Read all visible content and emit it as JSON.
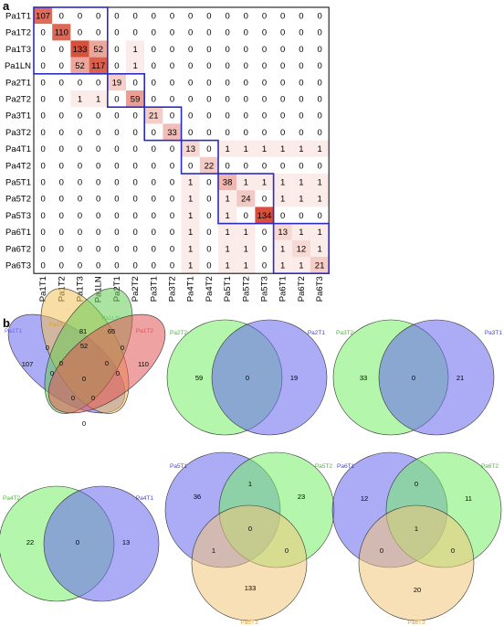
{
  "panels": {
    "a_label": "a",
    "b_label": "b"
  },
  "chart_data": [
    {
      "type": "heatmap",
      "labels": [
        "Pa1T1",
        "Pa1T2",
        "Pa1T3",
        "Pa1LN",
        "Pa2T1",
        "Pa2T2",
        "Pa3T1",
        "Pa3T2",
        "Pa4T1",
        "Pa4T2",
        "Pa5T1",
        "Pa5T2",
        "Pa5T3",
        "Pa6T1",
        "Pa6T2",
        "Pa6T3"
      ],
      "values": [
        [
          107,
          0,
          0,
          0,
          0,
          0,
          0,
          0,
          0,
          0,
          0,
          0,
          0,
          0,
          0,
          0
        ],
        [
          0,
          110,
          0,
          0,
          0,
          0,
          0,
          0,
          0,
          0,
          0,
          0,
          0,
          0,
          0,
          0
        ],
        [
          0,
          0,
          133,
          52,
          0,
          1,
          0,
          0,
          0,
          0,
          0,
          0,
          0,
          0,
          0,
          0
        ],
        [
          0,
          0,
          52,
          117,
          0,
          1,
          0,
          0,
          0,
          0,
          0,
          0,
          0,
          0,
          0,
          0
        ],
        [
          0,
          0,
          0,
          0,
          19,
          0,
          0,
          0,
          0,
          0,
          0,
          0,
          0,
          0,
          0,
          0
        ],
        [
          0,
          0,
          1,
          1,
          0,
          59,
          0,
          0,
          0,
          0,
          0,
          0,
          0,
          0,
          0,
          0
        ],
        [
          0,
          0,
          0,
          0,
          0,
          0,
          21,
          0,
          0,
          0,
          0,
          0,
          0,
          0,
          0,
          0
        ],
        [
          0,
          0,
          0,
          0,
          0,
          0,
          0,
          33,
          0,
          0,
          0,
          0,
          0,
          0,
          0,
          0
        ],
        [
          0,
          0,
          0,
          0,
          0,
          0,
          0,
          0,
          13,
          0,
          1,
          1,
          1,
          1,
          1,
          1
        ],
        [
          0,
          0,
          0,
          0,
          0,
          0,
          0,
          0,
          0,
          22,
          0,
          0,
          0,
          0,
          0,
          0
        ],
        [
          0,
          0,
          0,
          0,
          0,
          0,
          0,
          0,
          1,
          0,
          38,
          1,
          1,
          1,
          1,
          1
        ],
        [
          0,
          0,
          0,
          0,
          0,
          0,
          0,
          0,
          1,
          0,
          1,
          24,
          0,
          1,
          1,
          1
        ],
        [
          0,
          0,
          0,
          0,
          0,
          0,
          0,
          0,
          1,
          0,
          1,
          0,
          134,
          0,
          0,
          0
        ],
        [
          0,
          0,
          0,
          0,
          0,
          0,
          0,
          0,
          1,
          0,
          1,
          1,
          0,
          13,
          1,
          1
        ],
        [
          0,
          0,
          0,
          0,
          0,
          0,
          0,
          0,
          1,
          0,
          1,
          1,
          0,
          1,
          12,
          1
        ],
        [
          0,
          0,
          0,
          0,
          0,
          0,
          0,
          0,
          1,
          0,
          1,
          1,
          0,
          1,
          1,
          21
        ]
      ],
      "groups": [
        [
          0,
          3
        ],
        [
          4,
          5
        ],
        [
          6,
          7
        ],
        [
          8,
          9
        ],
        [
          10,
          12
        ],
        [
          13,
          15
        ]
      ],
      "colors": {
        "low": "#ffffff",
        "high": "#d94f3b",
        "group_box": "#2b2bbf"
      }
    },
    {
      "type": "venn4",
      "sets": [
        {
          "name": "Pa1T1",
          "color": "#6666ee"
        },
        {
          "name": "Pa1T3",
          "color": "#f2c15a"
        },
        {
          "name": "Pa1LN",
          "color": "#66cc55"
        },
        {
          "name": "Pa1T2",
          "color": "#e05555"
        }
      ],
      "regions": [
        {
          "region": "Pa1T1 only",
          "value": 107
        },
        {
          "region": "Pa1T3 only",
          "value": 81
        },
        {
          "region": "Pa1LN only",
          "value": 65
        },
        {
          "region": "Pa1T2 only",
          "value": 110
        },
        {
          "region": "Pa1T3 & Pa1LN",
          "value": 52
        },
        {
          "region": "Pa1T1 & Pa1T3",
          "value": 0
        },
        {
          "region": "Pa1LN & Pa1T2",
          "value": 0
        },
        {
          "region": "Pa1T1 & Pa1LN",
          "value": 0
        },
        {
          "region": "Pa1T3 & Pa1T2",
          "value": 0
        },
        {
          "region": "Pa1T1 & Pa1T3 & Pa1LN",
          "value": 0
        },
        {
          "region": "Pa1T3 & Pa1LN & Pa1T2",
          "value": 0
        },
        {
          "region": "Pa1T1 & Pa1T3 & Pa1LN & Pa1T2",
          "value": 0
        },
        {
          "region": "Pa1T1 & Pa1LN & Pa1T2",
          "value": 0
        },
        {
          "region": "Pa1T1 & Pa1T3 & Pa1T2",
          "value": 0
        },
        {
          "region": "Pa1T1 & Pa1T2",
          "value": 0
        }
      ]
    },
    {
      "type": "venn2",
      "sets": [
        {
          "name": "Pa2T2",
          "color": "#77ee66"
        },
        {
          "name": "Pa2T1",
          "color": "#6666ee"
        }
      ],
      "regions": [
        {
          "region": "Pa2T2 only",
          "value": 59
        },
        {
          "region": "Pa2T2 & Pa2T1",
          "value": 0
        },
        {
          "region": "Pa2T1 only",
          "value": 19
        }
      ]
    },
    {
      "type": "venn2",
      "sets": [
        {
          "name": "Pa3T2",
          "color": "#77ee66"
        },
        {
          "name": "Pa3T1",
          "color": "#6666ee"
        }
      ],
      "regions": [
        {
          "region": "Pa3T2 only",
          "value": 33
        },
        {
          "region": "Pa3T2 & Pa3T1",
          "value": 0
        },
        {
          "region": "Pa3T1 only",
          "value": 21
        }
      ]
    },
    {
      "type": "venn2",
      "sets": [
        {
          "name": "Pa4T2",
          "color": "#77ee66"
        },
        {
          "name": "Pa4T1",
          "color": "#6666ee"
        }
      ],
      "regions": [
        {
          "region": "Pa4T2 only",
          "value": 22
        },
        {
          "region": "Pa4T2 & Pa4T1",
          "value": 0
        },
        {
          "region": "Pa4T1 only",
          "value": 13
        }
      ]
    },
    {
      "type": "venn3",
      "sets": [
        {
          "name": "Pa5T1",
          "color": "#6666ee"
        },
        {
          "name": "Pa5T2",
          "color": "#77ee66"
        },
        {
          "name": "Pa5T3",
          "color": "#f2c67a"
        }
      ],
      "regions": [
        {
          "region": "Pa5T1 only",
          "value": 36
        },
        {
          "region": "Pa5T2 only",
          "value": 23
        },
        {
          "region": "Pa5T3 only",
          "value": 133
        },
        {
          "region": "Pa5T1 & Pa5T2",
          "value": 1
        },
        {
          "region": "Pa5T1 & Pa5T3",
          "value": 1
        },
        {
          "region": "Pa5T2 & Pa5T3",
          "value": 0
        },
        {
          "region": "Pa5T1 & Pa5T2 & Pa5T3",
          "value": 0
        }
      ]
    },
    {
      "type": "venn3",
      "sets": [
        {
          "name": "Pa6T1",
          "color": "#6666ee"
        },
        {
          "name": "Pa6T2",
          "color": "#77ee66"
        },
        {
          "name": "Pa6T3",
          "color": "#f2c67a"
        }
      ],
      "regions": [
        {
          "region": "Pa6T1 only",
          "value": 12
        },
        {
          "region": "Pa6T2 only",
          "value": 11
        },
        {
          "region": "Pa6T3 only",
          "value": 20
        },
        {
          "region": "Pa6T1 & Pa6T2",
          "value": 0
        },
        {
          "region": "Pa6T1 & Pa6T3",
          "value": 0
        },
        {
          "region": "Pa6T2 & Pa6T3",
          "value": 0
        },
        {
          "region": "Pa6T1 & Pa6T2 & Pa6T3",
          "value": 1
        }
      ]
    }
  ]
}
